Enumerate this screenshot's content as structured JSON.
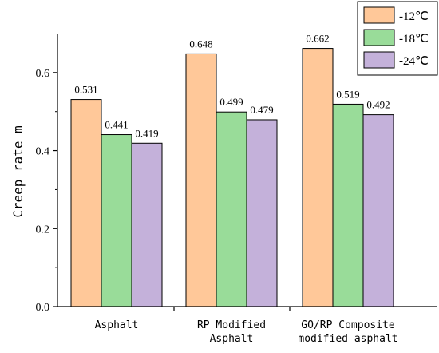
{
  "chart_data": {
    "type": "bar",
    "categories": [
      "Asphalt",
      "RP Modified\nAsphalt",
      "GO/RP Composite\nmodified asphalt"
    ],
    "series": [
      {
        "name": "-12℃",
        "values": [
          0.531,
          0.648,
          0.662
        ],
        "color": "#FFC899"
      },
      {
        "name": "-18℃",
        "values": [
          0.441,
          0.499,
          0.519
        ],
        "color": "#99DC99"
      },
      {
        "name": "-24℃",
        "values": [
          0.419,
          0.479,
          0.492
        ],
        "color": "#C4B1DA"
      }
    ],
    "data_labels": [
      [
        "0.531",
        "0.441",
        "0.419"
      ],
      [
        "0.648",
        "0.499",
        "0.479"
      ],
      [
        "0.662",
        "0.519",
        "0.492"
      ]
    ],
    "ylabel": "Creep rate m",
    "xlabel": "",
    "ylim": [
      0,
      0.7
    ],
    "yticks": [
      0.0,
      0.2,
      0.4,
      0.6
    ],
    "ytick_labels": [
      "0.0",
      "0.2",
      "0.4",
      "0.6"
    ],
    "grid": false,
    "legend_position": "top-right"
  }
}
